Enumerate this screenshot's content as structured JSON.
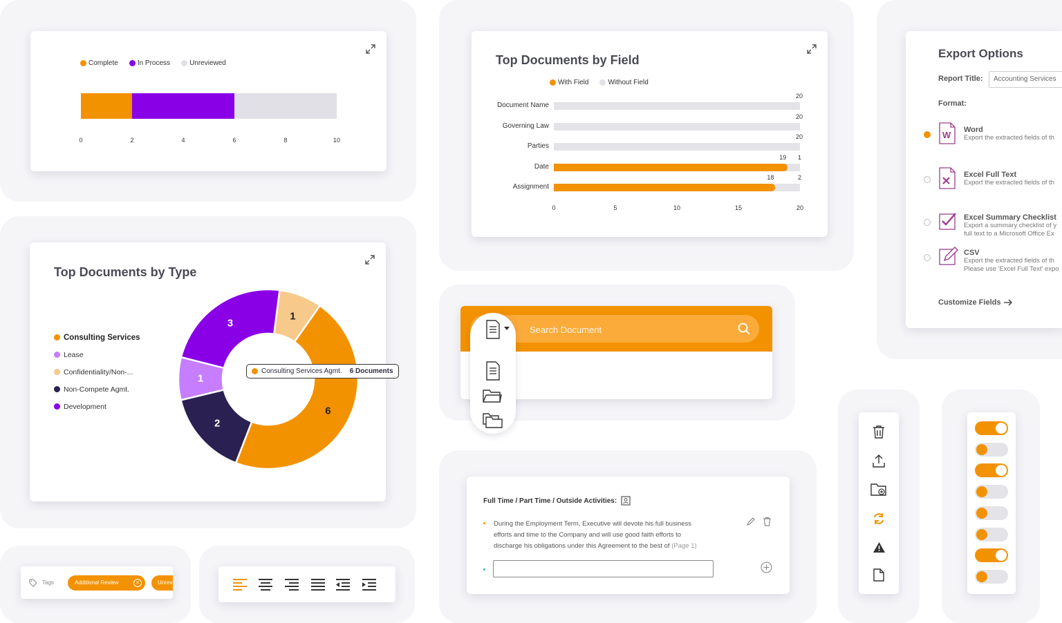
{
  "status_chart": {
    "legend": [
      {
        "label": "Complete",
        "color": "#f39200"
      },
      {
        "label": "In Process",
        "color": "#8a00e6"
      },
      {
        "label": "Unreviewed",
        "color": "#e0e0e6"
      }
    ],
    "ticks": [
      "0",
      "2",
      "4",
      "6",
      "8",
      "10"
    ]
  },
  "field_chart": {
    "title": "Top Documents by Field",
    "legend": [
      {
        "label": "With Field",
        "color": "#f39200"
      },
      {
        "label": "Without Field",
        "color": "#e0e0e6"
      }
    ],
    "ticks": [
      "0",
      "5",
      "10",
      "15",
      "20"
    ]
  },
  "type_chart": {
    "title": "Top Documents by Type",
    "legend": [
      {
        "label": "Consulting Services",
        "color": "#f39200",
        "bold": true
      },
      {
        "label": "Lease",
        "color": "#c77dff"
      },
      {
        "label": "Confidentiality/Non-...",
        "color": "#f7c98a"
      },
      {
        "label": "Non-Compete Agmt.",
        "color": "#2a2152"
      },
      {
        "label": "Development",
        "color": "#8a00e6"
      }
    ],
    "tooltip": {
      "label": "Consulting Services Agmt.",
      "value": "6 Documents"
    }
  },
  "chart_data": [
    {
      "type": "bar",
      "orientation": "horizontal-stacked",
      "categories": [
        ""
      ],
      "series": [
        {
          "name": "Complete",
          "values": [
            2
          ]
        },
        {
          "name": "In Process",
          "values": [
            4
          ]
        },
        {
          "name": "Unreviewed",
          "values": [
            4
          ]
        }
      ],
      "xlim": [
        0,
        10
      ],
      "legend": "top-left"
    },
    {
      "type": "bar",
      "orientation": "horizontal",
      "title": "Top Documents by Field",
      "categories": [
        "Document Name",
        "Governing Law",
        "Parties",
        "Date",
        "Assignment"
      ],
      "series": [
        {
          "name": "With Field",
          "values": [
            0,
            0,
            0,
            19,
            18
          ]
        },
        {
          "name": "Without Field",
          "values": [
            20,
            20,
            20,
            1,
            2
          ]
        }
      ],
      "totals": [
        20,
        20,
        20,
        20,
        20
      ],
      "xlim": [
        0,
        20
      ],
      "legend": "top"
    },
    {
      "type": "pie",
      "title": "Top Documents by Type",
      "donut": true,
      "labels": [
        "Consulting Services",
        "Non-Compete Agmt.",
        "Lease",
        "Development",
        "Confidentiality/Non-..."
      ],
      "values": [
        6,
        2,
        1,
        3,
        1
      ],
      "colors": [
        "#f39200",
        "#2a2152",
        "#c77dff",
        "#8a00e6",
        "#f7c98a"
      ],
      "legend": "left"
    }
  ],
  "search": {
    "placeholder": "Search Document"
  },
  "export": {
    "title": "Export Options",
    "report_title_label": "Report Title:",
    "report_title_value": "Accounting Services",
    "format_label": "Format:",
    "options": [
      {
        "name": "Word",
        "desc1": "Export the extracted fields of th",
        "desc2": "",
        "selected": true,
        "icon": "word-file-icon"
      },
      {
        "name": "Excel Full Text",
        "desc1": "Export the extracted fields of th",
        "desc2": "",
        "selected": false,
        "icon": "excel-file-icon"
      },
      {
        "name": "Excel Summary Checklist",
        "desc1": "Export a summary checklist of y",
        "desc2": "full text to a Microsoft Office Ex",
        "selected": false,
        "icon": "checklist-icon"
      },
      {
        "name": "CSV",
        "desc1": "Export the extracted fields of th",
        "desc2": "Please use 'Excel Full Text' expo",
        "selected": false,
        "icon": "edit-file-icon"
      }
    ],
    "customize": "Customize Fields"
  },
  "clause": {
    "heading": "Full Time / Part Time / Outside Activities:",
    "text_lines": [
      "During the Employment Term, Executive will devote his full business",
      "efforts and time to the Company and will use good faith efforts to",
      "discharge his obligations under this Agreement to the best of"
    ],
    "page_ref": "(Page 1)"
  },
  "tags": {
    "label": "Tags",
    "items": [
      "Additional Review",
      "Unrev"
    ]
  },
  "toggles": [
    true,
    false,
    true,
    false,
    false,
    false,
    true,
    false
  ]
}
